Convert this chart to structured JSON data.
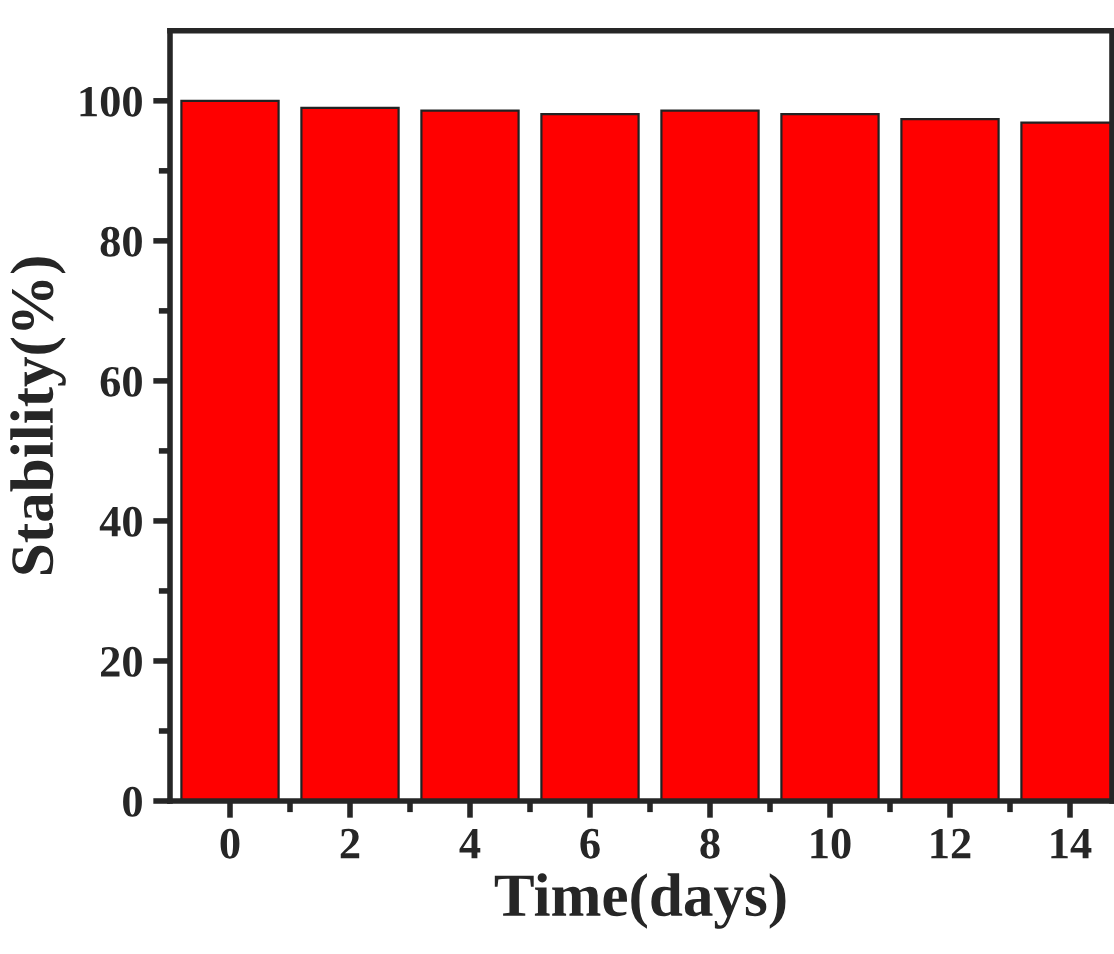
{
  "chart_data": {
    "type": "bar",
    "xlabel": "Time(days)",
    "ylabel": "Stability(%)",
    "x": [
      0,
      2,
      4,
      6,
      8,
      10,
      12,
      14
    ],
    "values": [
      100,
      99.0,
      98.6,
      98.1,
      98.6,
      98.1,
      97.4,
      96.9
    ],
    "color": "#ff0000",
    "xlim": [
      -1,
      14.7
    ],
    "ylim": [
      0,
      110
    ],
    "xticks": [
      0,
      {
        "value": 1,
        "label": null
      },
      2,
      {
        "value": 3,
        "label": null
      },
      4,
      {
        "value": 5,
        "label": null
      },
      6,
      {
        "value": 7,
        "label": null
      },
      8,
      {
        "value": 9,
        "label": null
      },
      10,
      {
        "value": 11,
        "label": null
      },
      12,
      {
        "value": 13,
        "label": null
      },
      14
    ],
    "yticks": [
      0,
      {
        "value": 10,
        "label": null
      },
      20,
      {
        "value": 30,
        "label": null
      },
      40,
      {
        "value": 50,
        "label": null
      },
      60,
      {
        "value": 70,
        "label": null
      },
      80,
      {
        "value": 90,
        "label": null
      },
      100
    ],
    "grid": false,
    "legend": false
  }
}
